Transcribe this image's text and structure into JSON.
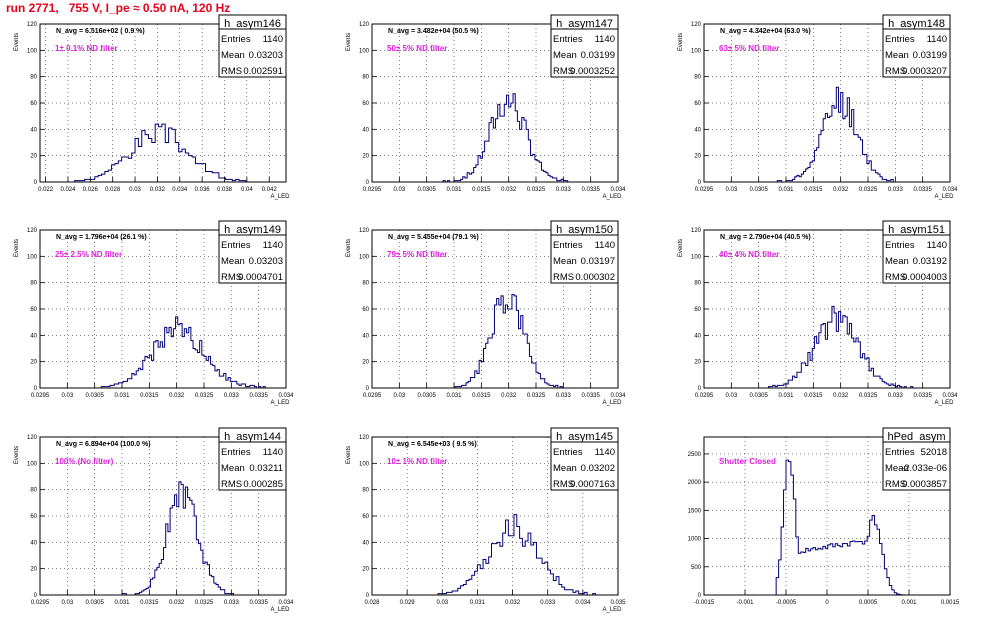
{
  "page": {
    "title": "run 2771,   755 V, I_pe ≈ 0.50 nA, 120 Hz"
  },
  "chart_data": [
    {
      "type": "bar",
      "name": "h_asym146",
      "label": "N_avg = 6.516e+02 ( 0.9 %)",
      "note": "1± 0.1% ND filter",
      "stats": {
        "entries": "1140",
        "mean": "0.03203",
        "rms": "0.002591"
      },
      "ylabel": "Events",
      "xlabel": "A_LED",
      "xlim": [
        0.0215,
        0.0435
      ],
      "ylim": [
        0,
        120
      ],
      "xticks": [
        0.022,
        0.024,
        0.026,
        0.028,
        0.03,
        0.032,
        0.034,
        0.036,
        0.038,
        0.04,
        0.042
      ],
      "xtick_labels": [
        "0.022",
        "0.024",
        "0.026",
        "0.028",
        "0.03",
        "0.032",
        "0.034",
        "0.036",
        "0.038",
        "0.04",
        "0.042"
      ],
      "yticks": [
        0,
        20,
        40,
        60,
        80,
        100,
        120
      ],
      "ytick_labels": [
        "0",
        "20",
        "40",
        "60",
        "80",
        "100",
        "120"
      ],
      "peaks": [
        {
          "center": 0.0321,
          "sigma": 0.0026,
          "height": 37
        }
      ],
      "range": [
        0.024,
        0.0405
      ],
      "bin": 0.0003,
      "seed": 3
    },
    {
      "type": "bar",
      "name": "h_asym147",
      "label": "N_avg = 3.482e+04 (50.5 %)",
      "note": "50± 5% ND filter",
      "stats": {
        "entries": "1140",
        "mean": "0.03199",
        "rms": "0.0003252"
      },
      "ylabel": "Events",
      "xlabel": "A_LED",
      "xlim": [
        0.0295,
        0.034
      ],
      "ylim": [
        0,
        120
      ],
      "xticks": [
        0.0295,
        0.03,
        0.0305,
        0.031,
        0.0315,
        0.032,
        0.0325,
        0.033,
        0.0335,
        0.034
      ],
      "xtick_labels": [
        "0.0295",
        "0.03",
        "0.0305",
        "0.031",
        "0.0315",
        "0.032",
        "0.0325",
        "0.033",
        "0.0335",
        "0.034"
      ],
      "yticks": [
        0,
        20,
        40,
        60,
        80,
        100,
        120
      ],
      "ytick_labels": [
        "0",
        "20",
        "40",
        "60",
        "80",
        "100",
        "120"
      ],
      "peaks": [
        {
          "center": 0.03199,
          "sigma": 0.000325,
          "height": 62
        }
      ],
      "range": [
        0.0308,
        0.0331
      ],
      "bin": 4e-05,
      "seed": 7
    },
    {
      "type": "bar",
      "name": "h_asym148",
      "label": "N_avg = 4.342e+04 (63.0 %)",
      "note": "63± 5% ND filter",
      "stats": {
        "entries": "1140",
        "mean": "0.03199",
        "rms": "0.0003207"
      },
      "ylabel": "Events",
      "xlabel": "A_LED",
      "xlim": [
        0.0295,
        0.034
      ],
      "ylim": [
        0,
        120
      ],
      "xticks": [
        0.0295,
        0.03,
        0.0305,
        0.031,
        0.0315,
        0.032,
        0.0325,
        0.033,
        0.0335,
        0.034
      ],
      "xtick_labels": [
        "0.0295",
        "0.03",
        "0.0305",
        "0.031",
        "0.0315",
        "0.032",
        "0.0325",
        "0.033",
        "0.0335",
        "0.034"
      ],
      "yticks": [
        0,
        20,
        40,
        60,
        80,
        100,
        120
      ],
      "ytick_labels": [
        "0",
        "20",
        "40",
        "60",
        "80",
        "100",
        "120"
      ],
      "peaks": [
        {
          "center": 0.03199,
          "sigma": 0.00032,
          "height": 62
        }
      ],
      "range": [
        0.0308,
        0.0331
      ],
      "bin": 4e-05,
      "seed": 11
    },
    {
      "type": "bar",
      "name": "h_asym149",
      "label": "N_avg = 1.796e+04 (26.1 %)",
      "note": "25± 2.5% ND filter",
      "stats": {
        "entries": "1140",
        "mean": "0.03203",
        "rms": "0.0004701"
      },
      "ylabel": "Events",
      "xlabel": "A_LED",
      "xlim": [
        0.0295,
        0.034
      ],
      "ylim": [
        0,
        120
      ],
      "xticks": [
        0.0295,
        0.03,
        0.0305,
        0.031,
        0.0315,
        0.032,
        0.0325,
        0.033,
        0.0335,
        0.034
      ],
      "xtick_labels": [
        "0.0295",
        "0.03",
        "0.0305",
        "0.031",
        "0.0315",
        "0.032",
        "0.0325",
        "0.033",
        "0.0335",
        "0.034"
      ],
      "yticks": [
        0,
        20,
        40,
        60,
        80,
        100,
        120
      ],
      "ytick_labels": [
        "0",
        "20",
        "40",
        "60",
        "80",
        "100",
        "120"
      ],
      "peaks": [
        {
          "center": 0.03203,
          "sigma": 0.00047,
          "height": 44
        }
      ],
      "range": [
        0.0305,
        0.0336
      ],
      "bin": 4e-05,
      "seed": 19
    },
    {
      "type": "bar",
      "name": "h_asym150",
      "label": "N_avg = 5.455e+04 (79.1 %)",
      "note": "79± 5% ND filter",
      "stats": {
        "entries": "1140",
        "mean": "0.03197",
        "rms": "0.000302"
      },
      "ylabel": "Events",
      "xlabel": "A_LED",
      "xlim": [
        0.0295,
        0.034
      ],
      "ylim": [
        0,
        120
      ],
      "xticks": [
        0.0295,
        0.03,
        0.0305,
        0.031,
        0.0315,
        0.032,
        0.0325,
        0.033,
        0.0335,
        0.034
      ],
      "xtick_labels": [
        "0.0295",
        "0.03",
        "0.0305",
        "0.031",
        "0.0315",
        "0.032",
        "0.0325",
        "0.033",
        "0.0335",
        "0.034"
      ],
      "yticks": [
        0,
        20,
        40,
        60,
        80,
        100,
        120
      ],
      "ytick_labels": [
        "0",
        "20",
        "40",
        "60",
        "80",
        "100",
        "120"
      ],
      "peaks": [
        {
          "center": 0.03197,
          "sigma": 0.0003,
          "height": 68
        }
      ],
      "range": [
        0.0309,
        0.033
      ],
      "bin": 4e-05,
      "seed": 23
    },
    {
      "type": "bar",
      "name": "h_asym151",
      "label": "N_avg = 2.790e+04 (40.5 %)",
      "note": "40± 4% ND filter",
      "stats": {
        "entries": "1140",
        "mean": "0.03192",
        "rms": "0.0004003"
      },
      "ylabel": "Events",
      "xlabel": "A_LED",
      "xlim": [
        0.0295,
        0.034
      ],
      "ylim": [
        0,
        120
      ],
      "xticks": [
        0.0295,
        0.03,
        0.0305,
        0.031,
        0.0315,
        0.032,
        0.0325,
        0.033,
        0.0335,
        0.034
      ],
      "xtick_labels": [
        "0.0295",
        "0.03",
        "0.0305",
        "0.031",
        "0.0315",
        "0.032",
        "0.0325",
        "0.033",
        "0.0335",
        "0.034"
      ],
      "yticks": [
        0,
        20,
        40,
        60,
        80,
        100,
        120
      ],
      "ytick_labels": [
        "0",
        "20",
        "40",
        "60",
        "80",
        "100",
        "120"
      ],
      "peaks": [
        {
          "center": 0.03192,
          "sigma": 0.0004,
          "height": 52
        }
      ],
      "range": [
        0.0306,
        0.0333
      ],
      "bin": 4e-05,
      "seed": 29
    },
    {
      "type": "bar",
      "name": "h_asym144",
      "label": "N_avg = 6.894e+04 (100.0 %)",
      "note": "100% (No filter)",
      "stats": {
        "entries": "1140",
        "mean": "0.03211",
        "rms": "0.000285"
      },
      "ylabel": "Events",
      "xlabel": "A_LED",
      "xlim": [
        0.0295,
        0.034
      ],
      "ylim": [
        0,
        120
      ],
      "xticks": [
        0.0295,
        0.03,
        0.0305,
        0.031,
        0.0315,
        0.032,
        0.0325,
        0.033,
        0.0335,
        0.034
      ],
      "xtick_labels": [
        "0.0295",
        "0.03",
        "0.0305",
        "0.031",
        "0.0315",
        "0.032",
        "0.0325",
        "0.033",
        "0.0335",
        "0.034"
      ],
      "yticks": [
        0,
        20,
        40,
        60,
        80,
        100,
        120
      ],
      "ytick_labels": [
        "0",
        "20",
        "40",
        "60",
        "80",
        "100",
        "120"
      ],
      "peaks": [
        {
          "center": 0.03211,
          "sigma": 0.000285,
          "height": 74
        }
      ],
      "range": [
        0.031,
        0.0331
      ],
      "bin": 4e-05,
      "seed": 31
    },
    {
      "type": "bar",
      "name": "h_asym145",
      "label": "N_avg = 6.545e+03 ( 9.5 %)",
      "note": "10± 1% ND filter",
      "stats": {
        "entries": "1140",
        "mean": "0.03202",
        "rms": "0.0007163"
      },
      "ylabel": "Events",
      "xlabel": "A_LED",
      "xlim": [
        0.028,
        0.035
      ],
      "ylim": [
        0,
        120
      ],
      "xticks": [
        0.028,
        0.029,
        0.03,
        0.031,
        0.032,
        0.033,
        0.034,
        0.035
      ],
      "xtick_labels": [
        "0.028",
        "0.029",
        "0.03",
        "0.031",
        "0.032",
        "0.033",
        "0.034",
        "0.035"
      ],
      "yticks": [
        0,
        20,
        40,
        60,
        80,
        100,
        120
      ],
      "ytick_labels": [
        "0",
        "20",
        "40",
        "60",
        "80",
        "100",
        "120"
      ],
      "peaks": [
        {
          "center": 0.03202,
          "sigma": 0.00071,
          "height": 50
        }
      ],
      "range": [
        0.0298,
        0.0345
      ],
      "bin": 8e-05,
      "seed": 37
    },
    {
      "type": "bar",
      "name": "hPed_asym",
      "label": "",
      "note": "Shutter Closed",
      "stats": {
        "entries": "52018",
        "mean": "-2.033e-06",
        "rms": "0.0003857"
      },
      "ylabel": "",
      "xlabel": "",
      "xlim": [
        -0.0015,
        0.0015
      ],
      "ylim": [
        0,
        2800
      ],
      "xticks": [
        -0.0015,
        -0.001,
        -0.0005,
        0,
        0.0005,
        0.001,
        0.0015
      ],
      "xtick_labels": [
        "-0.0015",
        "-0.001",
        "-0.0005",
        "0",
        "0.0005",
        "0.001",
        "0.0015"
      ],
      "yticks": [
        0,
        500,
        1000,
        1500,
        2000,
        2500
      ],
      "ytick_labels": [
        "0",
        "500",
        "1000",
        "1500",
        "2000",
        "2500"
      ],
      "ped": true,
      "seed": 41
    }
  ]
}
